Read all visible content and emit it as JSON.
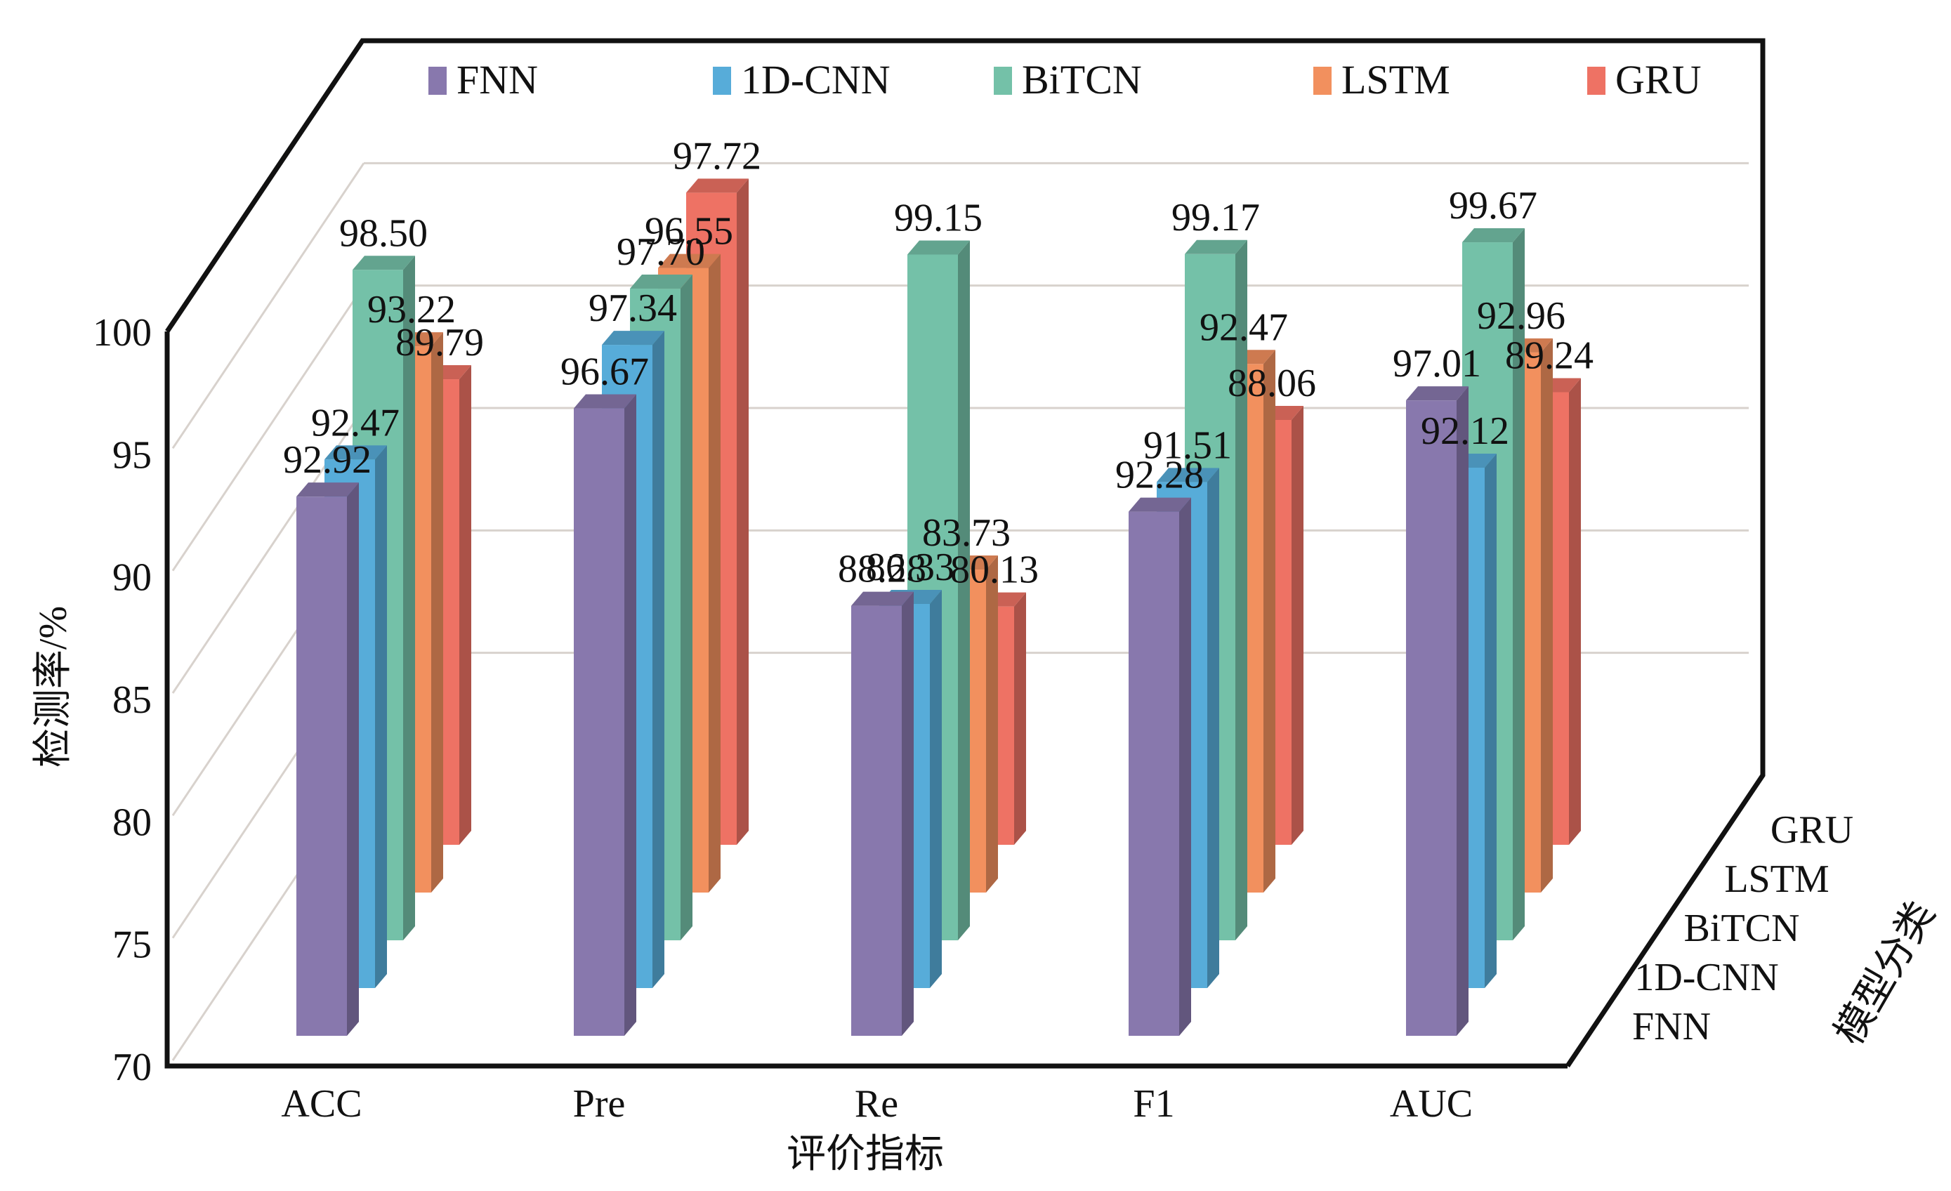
{
  "chart_data": {
    "type": "bar",
    "variant": "3d-clustered-column",
    "title": "",
    "xlabel": "评价指标",
    "ylabel": "检测率/%",
    "zlabel": "模型分类",
    "categories": [
      "ACC",
      "Pre",
      "Re",
      "F1",
      "AUC"
    ],
    "ylim": [
      70,
      100
    ],
    "yticks": [
      70,
      75,
      80,
      85,
      90,
      95,
      100
    ],
    "grid": true,
    "legend_position": "top",
    "series": [
      {
        "name": "FNN",
        "color": "#8878ad",
        "values": [
          92.92,
          96.67,
          88.28,
          92.28,
          97.01
        ]
      },
      {
        "name": "1D-CNN",
        "color": "#57acd9",
        "values": [
          92.47,
          97.34,
          86.33,
          91.51,
          92.12
        ]
      },
      {
        "name": "BiTCN",
        "color": "#74c1a8",
        "values": [
          98.5,
          97.7,
          99.15,
          99.17,
          99.67
        ]
      },
      {
        "name": "LSTM",
        "color": "#f2905e",
        "values": [
          93.22,
          96.55,
          83.73,
          92.47,
          92.96
        ]
      },
      {
        "name": "GRU",
        "color": "#ee7264",
        "values": [
          89.79,
          97.72,
          80.13,
          88.06,
          89.24
        ]
      }
    ],
    "depth_axis_labels": [
      "FNN",
      "1D-CNN",
      "BiTCN",
      "LSTM",
      "GRU"
    ]
  }
}
